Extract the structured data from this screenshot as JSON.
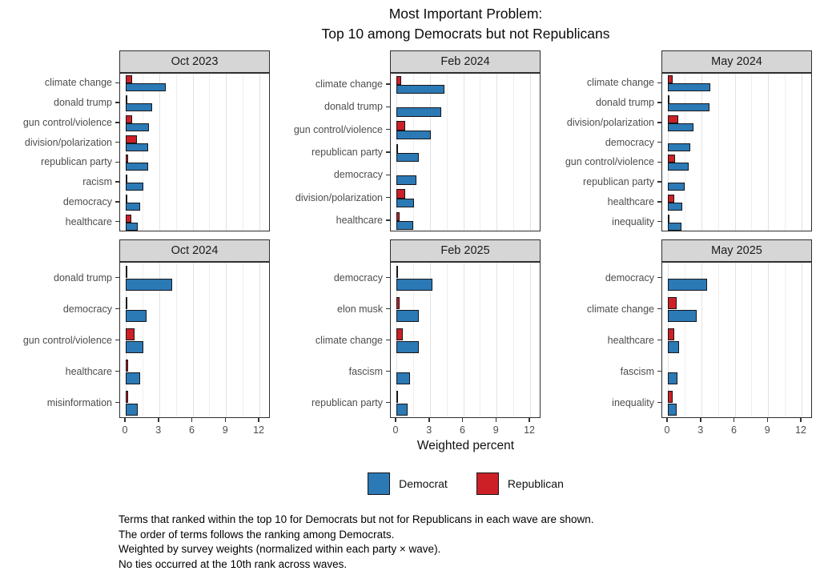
{
  "title": {
    "line1": "Most Important Problem:",
    "line2": "Top 10 among Democrats but not Republicans"
  },
  "chart_data": {
    "type": "bar",
    "orientation": "horizontal",
    "title": "Most Important Problem: Top 10 among Democrats but not Republicans",
    "xlabel": "Weighted percent",
    "ylabel": "",
    "xlim": [
      0,
      13.5
    ],
    "x_ticks": [
      0,
      3,
      6,
      9,
      12
    ],
    "x_minor_gridlines": [
      1.5,
      4.5,
      7.5,
      10.5
    ],
    "grid": true,
    "legend": {
      "position": "bottom",
      "entries": [
        {
          "label": "Democrat",
          "color": "#2b79b5"
        },
        {
          "label": "Republican",
          "color": "#cc2026"
        }
      ]
    },
    "facets": [
      {
        "label": "Oct 2023",
        "categories": [
          "climate change",
          "donald trump",
          "gun control/violence",
          "division/polarization",
          "republican party",
          "racism",
          "democracy",
          "healthcare"
        ],
        "series": [
          {
            "name": "Democrat",
            "values": [
              3.6,
              2.4,
              2.1,
              2.0,
              2.0,
              1.6,
              1.3,
              1.1
            ]
          },
          {
            "name": "Republican",
            "values": [
              0.6,
              0.1,
              0.6,
              1.0,
              0.2,
              0.05,
              0.05,
              0.5
            ]
          }
        ]
      },
      {
        "label": "Feb 2024",
        "categories": [
          "climate change",
          "donald trump",
          "gun control/violence",
          "republican party",
          "democracy",
          "division/polarization",
          "healthcare"
        ],
        "series": [
          {
            "name": "Democrat",
            "values": [
              4.3,
              4.0,
              3.1,
              2.0,
              1.8,
              1.6,
              1.5
            ]
          },
          {
            "name": "Republican",
            "values": [
              0.4,
              0,
              0.8,
              0.15,
              0,
              0.8,
              0.3
            ]
          }
        ]
      },
      {
        "label": "May 2024",
        "categories": [
          "climate change",
          "donald trump",
          "division/polarization",
          "democracy",
          "gun control/violence",
          "republican party",
          "healthcare",
          "inequality"
        ],
        "series": [
          {
            "name": "Democrat",
            "values": [
              3.8,
              3.7,
              2.3,
              2.0,
              1.9,
              1.5,
              1.3,
              1.2
            ]
          },
          {
            "name": "Republican",
            "values": [
              0.45,
              0.15,
              0.9,
              0,
              0.65,
              0,
              0.55,
              0.15
            ]
          }
        ]
      },
      {
        "label": "Oct 2024",
        "categories": [
          "donald trump",
          "democracy",
          "gun control/violence",
          "healthcare",
          "misinformation"
        ],
        "series": [
          {
            "name": "Democrat",
            "values": [
              4.2,
              1.9,
              1.6,
              1.3,
              1.1
            ]
          },
          {
            "name": "Republican",
            "values": [
              0.15,
              0.05,
              0.8,
              0.2,
              0.2
            ]
          }
        ]
      },
      {
        "label": "Feb 2025",
        "categories": [
          "democracy",
          "elon musk",
          "climate change",
          "fascism",
          "republican party"
        ],
        "series": [
          {
            "name": "Democrat",
            "values": [
              3.2,
              2.0,
              2.0,
              1.2,
              1.0
            ]
          },
          {
            "name": "Republican",
            "values": [
              0.1,
              0.3,
              0.6,
              0,
              0.15
            ]
          }
        ]
      },
      {
        "label": "May 2025",
        "categories": [
          "democracy",
          "climate change",
          "healthcare",
          "fascism",
          "inequality"
        ],
        "series": [
          {
            "name": "Democrat",
            "values": [
              3.5,
              2.6,
              1.0,
              0.85,
              0.8
            ]
          },
          {
            "name": "Republican",
            "values": [
              0,
              0.8,
              0.55,
              0,
              0.4
            ]
          }
        ]
      }
    ]
  },
  "colors": {
    "democrat": "#2b79b5",
    "republican": "#cc2026",
    "bar_border": "#16161a",
    "strip_bg": "#d6d6d6",
    "panel_border": "#2f2f2f",
    "axis_text": "#4d4d4d"
  },
  "footnotes": [
    "Terms that ranked within the top 10 for Democrats but not for Republicans in each wave are shown.",
    "The order of terms follows the ranking among Democrats.",
    "Weighted by survey weights (normalized within each party × wave).",
    "No ties occurred at the 10th rank across waves."
  ]
}
